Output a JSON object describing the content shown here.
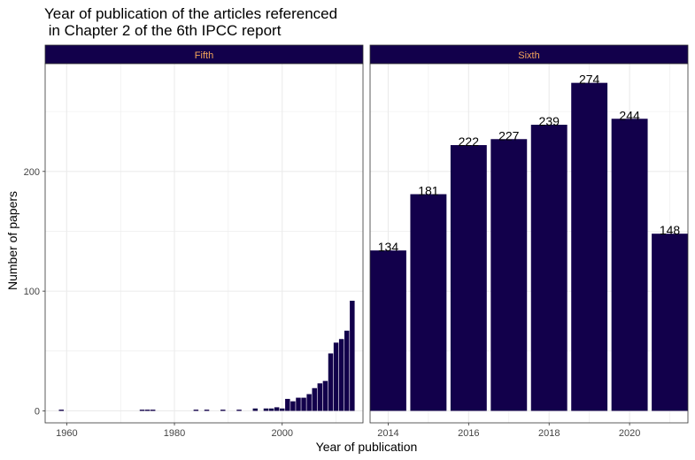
{
  "chart_data": {
    "type": "bar",
    "title_line1": "Year of publication of the articles referenced",
    "title_line2": " in Chapter 2 of the 6th IPCC report",
    "xlabel": "Year of publication",
    "ylabel": "Number of papers",
    "ylim": [
      -10,
      290
    ],
    "yticks": [
      0,
      100,
      200
    ],
    "grid": true,
    "colors": {
      "bar": "#12004b",
      "strip_bg": "#12004b",
      "strip_text": "#f4a55b",
      "grid": "#ebebeb",
      "panel_border": "#333333"
    },
    "panels": [
      {
        "name": "Fifth",
        "xlim": [
          1956,
          2015
        ],
        "xticks": [
          1960,
          1980,
          2000
        ],
        "data_labels": false,
        "bars": [
          {
            "x": 1959,
            "y": 1
          },
          {
            "x": 1974,
            "y": 1
          },
          {
            "x": 1975,
            "y": 1
          },
          {
            "x": 1976,
            "y": 1
          },
          {
            "x": 1984,
            "y": 1
          },
          {
            "x": 1986,
            "y": 1
          },
          {
            "x": 1989,
            "y": 1
          },
          {
            "x": 1992,
            "y": 1
          },
          {
            "x": 1995,
            "y": 2
          },
          {
            "x": 1997,
            "y": 2
          },
          {
            "x": 1998,
            "y": 2
          },
          {
            "x": 1999,
            "y": 3
          },
          {
            "x": 2000,
            "y": 2
          },
          {
            "x": 2001,
            "y": 10
          },
          {
            "x": 2002,
            "y": 8
          },
          {
            "x": 2003,
            "y": 11
          },
          {
            "x": 2004,
            "y": 11
          },
          {
            "x": 2005,
            "y": 14
          },
          {
            "x": 2006,
            "y": 19
          },
          {
            "x": 2007,
            "y": 23
          },
          {
            "x": 2008,
            "y": 25
          },
          {
            "x": 2009,
            "y": 48
          },
          {
            "x": 2010,
            "y": 57
          },
          {
            "x": 2011,
            "y": 60
          },
          {
            "x": 2012,
            "y": 67
          },
          {
            "x": 2013,
            "y": 92
          }
        ]
      },
      {
        "name": "Sixth",
        "xlim": [
          2013.55,
          2021.45
        ],
        "xticks": [
          2014,
          2016,
          2018,
          2020
        ],
        "data_labels": true,
        "bars": [
          {
            "x": 2014,
            "y": 134
          },
          {
            "x": 2015,
            "y": 181
          },
          {
            "x": 2016,
            "y": 222
          },
          {
            "x": 2017,
            "y": 227
          },
          {
            "x": 2018,
            "y": 239
          },
          {
            "x": 2019,
            "y": 274
          },
          {
            "x": 2020,
            "y": 244
          },
          {
            "x": 2021,
            "y": 148
          }
        ]
      }
    ]
  }
}
